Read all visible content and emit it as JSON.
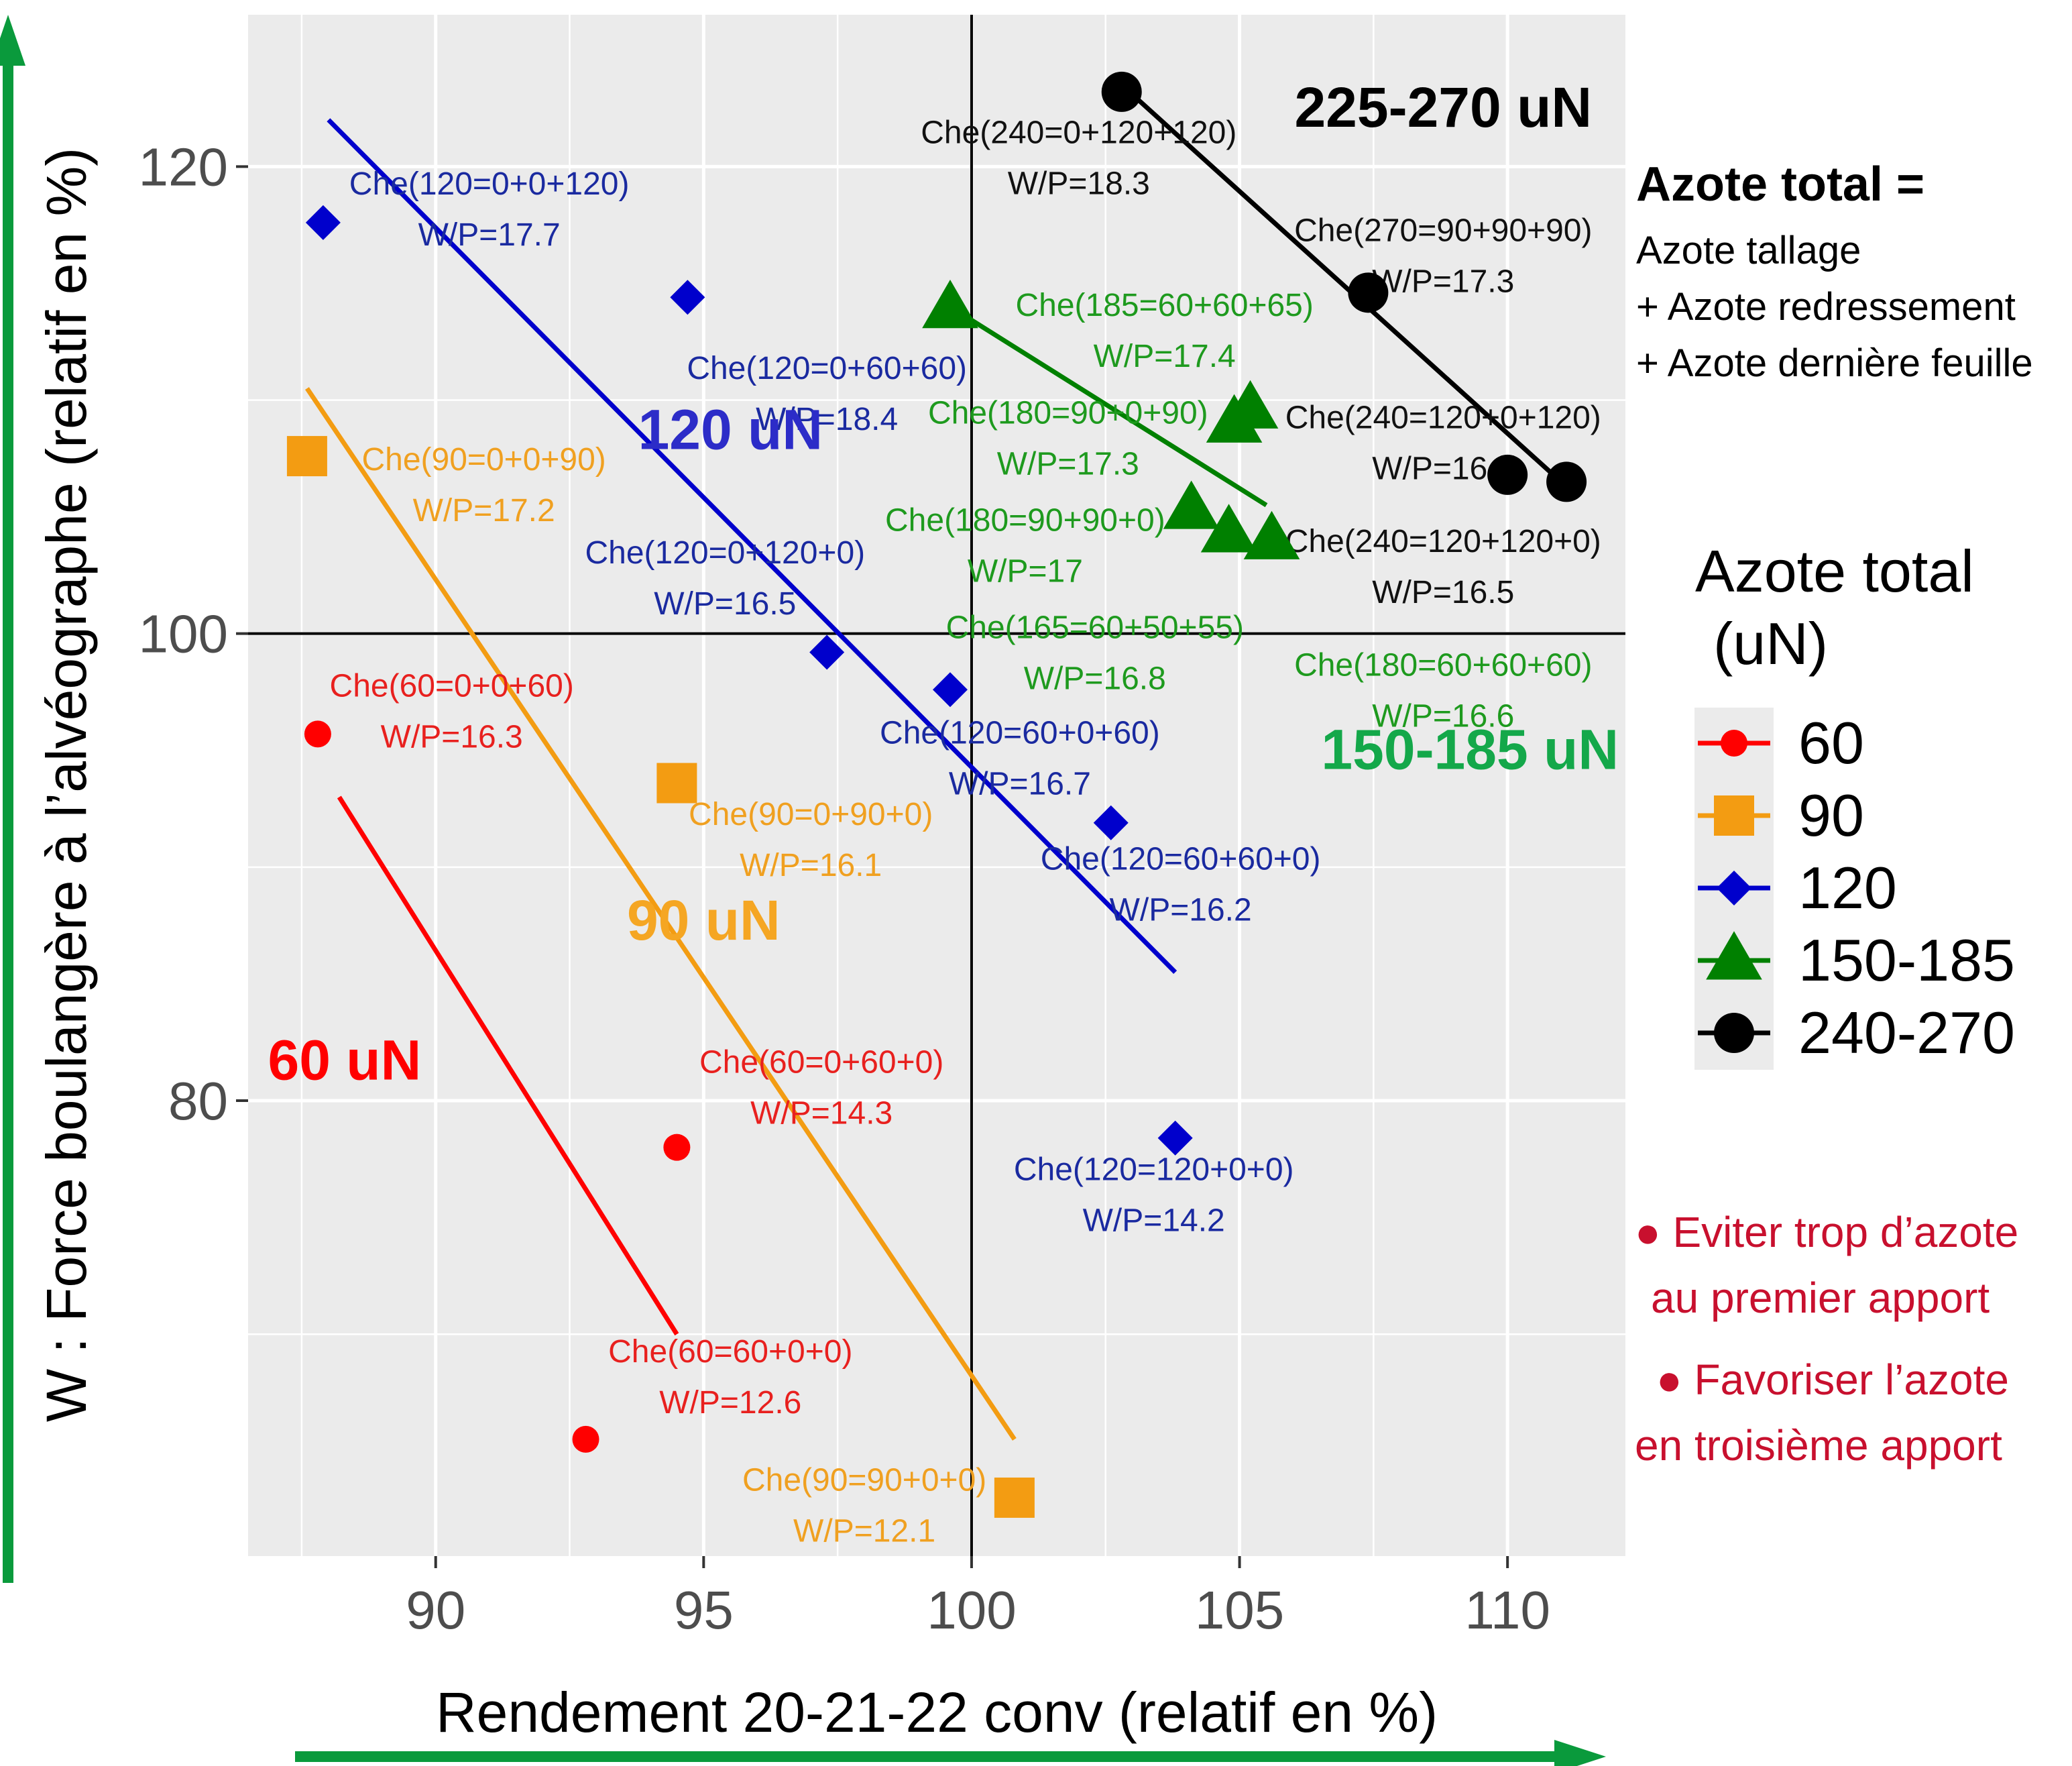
{
  "chart_data": {
    "type": "scatter",
    "xlabel": "Rendement 20-21-22 conv (relatif en %)",
    "ylabel": "W : Force boulangère à l’alvéographe (relatif en %)",
    "xlim": [
      86.5,
      112.2
    ],
    "ylim": [
      60.5,
      126.5
    ],
    "x_ticks": [
      90,
      95,
      100,
      105,
      110
    ],
    "y_ticks": [
      80,
      100,
      120
    ],
    "grid": true,
    "reference_lines": {
      "x": 100,
      "y": 100
    },
    "legend": {
      "title_line1": "Azote total",
      "title_line2": "(uN)",
      "placement": "right"
    },
    "series": [
      {
        "name": "60",
        "color": "#ff0000",
        "label_color": "#e8201e",
        "marker": "circle",
        "group_label": "60 uN",
        "group_label_pos": [
          88.3,
          80.9
        ],
        "fit_line": [
          [
            88.2,
            93.0
          ],
          [
            94.5,
            70.0
          ]
        ],
        "points": [
          {
            "x": 87.8,
            "y": 95.7,
            "label": "Che(60=0+0+60)",
            "wp": "W/P=16.3",
            "lx": 90.3,
            "ly": 97.3
          },
          {
            "x": 94.5,
            "y": 78.0,
            "label": "Che(60=0+60+0)",
            "wp": "W/P=14.3",
            "lx": 97.2,
            "ly": 81.2
          },
          {
            "x": 92.8,
            "y": 65.5,
            "label": "Che(60=60+0+0)",
            "wp": "W/P=12.6",
            "lx": 95.5,
            "ly": 68.8
          }
        ]
      },
      {
        "name": "90",
        "color": "#f39c12",
        "label_color": "#f0a020",
        "marker": "square",
        "group_label": "90 uN",
        "group_label_pos": [
          95.0,
          86.9
        ],
        "fit_line": [
          [
            87.6,
            110.5
          ],
          [
            100.8,
            65.5
          ]
        ],
        "points": [
          {
            "x": 87.6,
            "y": 107.6,
            "label": "Che(90=0+0+90)",
            "wp": "W/P=17.2",
            "lx": 90.9,
            "ly": 107.0
          },
          {
            "x": 94.5,
            "y": 93.6,
            "label": "Che(90=0+90+0)",
            "wp": "W/P=16.1",
            "lx": 97.0,
            "ly": 91.8
          },
          {
            "x": 100.8,
            "y": 63.0,
            "label": "Che(90=90+0+0)",
            "wp": "W/P=12.1",
            "lx": 98.0,
            "ly": 63.3
          }
        ]
      },
      {
        "name": "120",
        "color": "#0000cc",
        "label_color": "#1a2aa0",
        "marker": "diamond",
        "group_label": "120 uN",
        "group_label_pos": [
          95.5,
          107.9
        ],
        "fit_line": [
          [
            88.0,
            122.0
          ],
          [
            103.8,
            85.5
          ]
        ],
        "points": [
          {
            "x": 87.9,
            "y": 117.6,
            "label": "Che(120=0+0+120)",
            "wp": "W/P=17.7",
            "lx": 91.0,
            "ly": 118.8
          },
          {
            "x": 94.7,
            "y": 114.4,
            "label": "Che(120=0+60+60)",
            "wp": "W/P=18.4",
            "lx": 97.3,
            "ly": 110.9
          },
          {
            "x": 97.3,
            "y": 99.2,
            "label": "Che(120=0+120+0)",
            "wp": "W/P=16.5",
            "lx": 95.4,
            "ly": 103.0
          },
          {
            "x": 99.6,
            "y": 97.6,
            "label": "Che(120=60+0+60)",
            "wp": "W/P=16.7",
            "lx": 100.9,
            "ly": 95.3
          },
          {
            "x": 102.6,
            "y": 91.9,
            "label": "Che(120=60+60+0)",
            "wp": "W/P=16.2",
            "lx": 103.9,
            "ly": 89.9
          },
          {
            "x": 103.8,
            "y": 78.4,
            "label": "Che(120=120+0+0)",
            "wp": "W/P=14.2",
            "lx": 103.4,
            "ly": 76.6
          }
        ]
      },
      {
        "name": "150-185",
        "color": "#008000",
        "label_color": "#1e9a1e",
        "marker": "triangle",
        "group_label": "150-185 uN",
        "group_label_pos": [
          109.3,
          94.2
        ],
        "fit_line": [
          [
            99.6,
            114.0
          ],
          [
            105.5,
            105.5
          ]
        ],
        "points": [
          {
            "x": 99.6,
            "y": 113.9,
            "label": "Che(185=60+60+65)",
            "wp": "W/P=17.4",
            "lx": 103.6,
            "ly": 113.6
          },
          {
            "x": 104.9,
            "y": 109.0,
            "label": "Che(180=90+0+90)",
            "wp": "W/P=17.3",
            "lx": 101.8,
            "ly": 109.0
          },
          {
            "x": 105.2,
            "y": 109.6,
            "label": "Che(240=120+0+120)",
            "wp": "",
            "lx": 0,
            "ly": 0,
            "hidden": true
          },
          {
            "x": 104.1,
            "y": 105.3,
            "label": "Che(180=90+90+0)",
            "wp": "W/P=17",
            "lx": 101.0,
            "ly": 104.4
          },
          {
            "x": 104.8,
            "y": 104.3,
            "label": "Che(165=60+50+55)",
            "wp": "W/P=16.8",
            "lx": 102.3,
            "ly": 99.8
          },
          {
            "x": 105.6,
            "y": 104.0,
            "label": "Che(180=60+60+60)",
            "wp": "W/P=16.6",
            "lx": 108.8,
            "ly": 98.2
          }
        ]
      },
      {
        "name": "240-270",
        "color": "#000000",
        "label_color": "#111111",
        "marker": "circle",
        "group_label": "225-270 uN",
        "group_label_pos": [
          108.8,
          121.7
        ],
        "fit_line": [
          [
            102.8,
            123.5
          ],
          [
            111.0,
            106.5
          ]
        ],
        "points": [
          {
            "x": 102.8,
            "y": 123.2,
            "label": "Che(240=0+120+120)",
            "wp": "W/P=18.3",
            "lx": 102.0,
            "ly": 121.0
          },
          {
            "x": 107.4,
            "y": 114.6,
            "label": "Che(270=90+90+90)",
            "wp": "W/P=17.3",
            "lx": 108.8,
            "ly": 116.8
          },
          {
            "x": 110.0,
            "y": 106.8,
            "label": "Che(240=120+0+120)",
            "wp": "W/P=16.5",
            "lx": 108.8,
            "ly": 108.8
          },
          {
            "x": 111.1,
            "y": 106.5,
            "label": "Che(240=120+0+120)",
            "wp": "",
            "lx": 0,
            "ly": 0,
            "hidden": true
          },
          {
            "x": 105.6,
            "y": 104.1,
            "label": "Che(240=120+120+0)",
            "wp": "W/P=16.5",
            "lx": 108.8,
            "ly": 103.5,
            "marker_hidden": true
          }
        ]
      }
    ]
  },
  "side_notes": {
    "azote_title": "Azote total =",
    "azote_line1": "Azote tallage",
    "azote_line2": "+ Azote redressement",
    "azote_line3": "+ Azote dernière feuille",
    "advice1_line1": "● Eviter trop d’azote",
    "advice1_line2": "au premier apport",
    "advice2_line1": "● Favoriser l’azote",
    "advice2_line2": "en troisième apport",
    "note_color": "#c8102e"
  }
}
